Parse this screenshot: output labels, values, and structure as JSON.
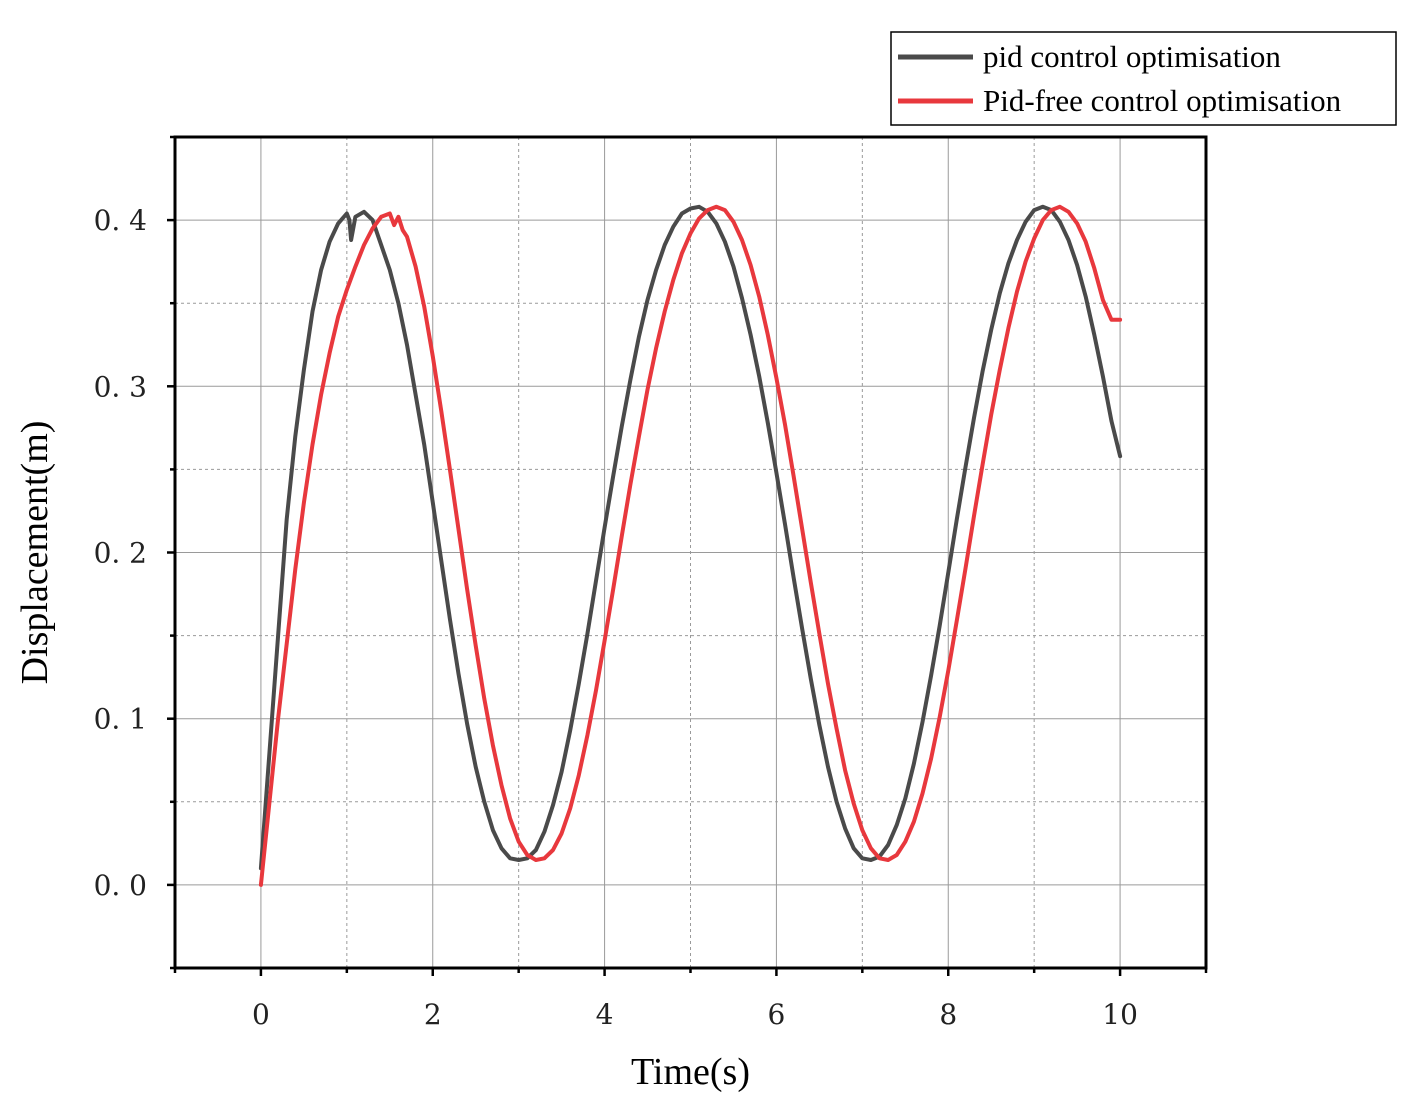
{
  "chart_data": {
    "type": "line",
    "title": "",
    "xlabel": "Time(s)",
    "ylabel": "Displacement(m)",
    "xlim": [
      -1,
      11
    ],
    "ylim": [
      -0.05,
      0.45
    ],
    "xticks": [
      0,
      2,
      4,
      6,
      8,
      10
    ],
    "xtick_labels": [
      "0",
      "2",
      "4",
      "6",
      "8",
      "10"
    ],
    "yticks": [
      0.0,
      0.1,
      0.2,
      0.3,
      0.4
    ],
    "ytick_labels": [
      "0. 0",
      "0. 1",
      "0. 2",
      "0. 3",
      "0. 4"
    ],
    "grid": true,
    "legend_position": "top-right, outside plot",
    "series": [
      {
        "name": "pid control optimisation",
        "color": "#4a4a4a",
        "x": [
          0.0,
          0.1,
          0.2,
          0.3,
          0.4,
          0.5,
          0.6,
          0.7,
          0.8,
          0.9,
          1.0,
          1.03,
          1.05,
          1.1,
          1.2,
          1.3,
          1.4,
          1.5,
          1.6,
          1.7,
          1.8,
          1.9,
          2.0,
          2.1,
          2.2,
          2.3,
          2.4,
          2.5,
          2.6,
          2.7,
          2.8,
          2.9,
          3.0,
          3.1,
          3.2,
          3.3,
          3.4,
          3.5,
          3.6,
          3.7,
          3.8,
          3.9,
          4.0,
          4.1,
          4.2,
          4.3,
          4.4,
          4.5,
          4.6,
          4.7,
          4.8,
          4.9,
          5.0,
          5.1,
          5.2,
          5.3,
          5.4,
          5.5,
          5.6,
          5.7,
          5.8,
          5.9,
          6.0,
          6.1,
          6.2,
          6.3,
          6.4,
          6.5,
          6.6,
          6.7,
          6.8,
          6.9,
          7.0,
          7.1,
          7.2,
          7.3,
          7.4,
          7.5,
          7.6,
          7.7,
          7.8,
          7.9,
          8.0,
          8.1,
          8.2,
          8.3,
          8.4,
          8.5,
          8.6,
          8.7,
          8.8,
          8.9,
          9.0,
          9.1,
          9.2,
          9.3,
          9.4,
          9.5,
          9.6,
          9.7,
          9.8,
          9.9,
          10.0
        ],
        "values": [
          0.01,
          0.08,
          0.15,
          0.22,
          0.27,
          0.31,
          0.345,
          0.37,
          0.387,
          0.398,
          0.404,
          0.4,
          0.388,
          0.402,
          0.405,
          0.4,
          0.385,
          0.37,
          0.35,
          0.325,
          0.295,
          0.265,
          0.23,
          0.195,
          0.16,
          0.127,
          0.097,
          0.071,
          0.05,
          0.033,
          0.022,
          0.016,
          0.015,
          0.016,
          0.021,
          0.032,
          0.048,
          0.068,
          0.093,
          0.121,
          0.151,
          0.183,
          0.215,
          0.246,
          0.276,
          0.304,
          0.33,
          0.352,
          0.37,
          0.385,
          0.396,
          0.404,
          0.407,
          0.408,
          0.405,
          0.398,
          0.387,
          0.372,
          0.353,
          0.331,
          0.306,
          0.278,
          0.248,
          0.217,
          0.185,
          0.154,
          0.124,
          0.096,
          0.071,
          0.05,
          0.034,
          0.022,
          0.016,
          0.015,
          0.017,
          0.024,
          0.036,
          0.052,
          0.073,
          0.098,
          0.126,
          0.156,
          0.188,
          0.22,
          0.251,
          0.281,
          0.309,
          0.334,
          0.356,
          0.374,
          0.388,
          0.399,
          0.406,
          0.408,
          0.406,
          0.399,
          0.388,
          0.373,
          0.354,
          0.331,
          0.306,
          0.279,
          0.258
        ]
      },
      {
        "name": "Pid-free control optimisation",
        "color": "#e8383d",
        "x": [
          0.0,
          0.1,
          0.2,
          0.3,
          0.4,
          0.5,
          0.6,
          0.7,
          0.8,
          0.9,
          1.0,
          1.1,
          1.2,
          1.3,
          1.4,
          1.5,
          1.55,
          1.6,
          1.65,
          1.7,
          1.8,
          1.9,
          2.0,
          2.1,
          2.2,
          2.3,
          2.4,
          2.5,
          2.6,
          2.7,
          2.8,
          2.9,
          3.0,
          3.1,
          3.2,
          3.3,
          3.4,
          3.5,
          3.6,
          3.7,
          3.8,
          3.9,
          4.0,
          4.1,
          4.2,
          4.3,
          4.4,
          4.5,
          4.6,
          4.7,
          4.8,
          4.9,
          5.0,
          5.1,
          5.2,
          5.3,
          5.4,
          5.5,
          5.6,
          5.7,
          5.8,
          5.9,
          6.0,
          6.1,
          6.2,
          6.3,
          6.4,
          6.5,
          6.6,
          6.7,
          6.8,
          6.9,
          7.0,
          7.1,
          7.2,
          7.3,
          7.4,
          7.5,
          7.6,
          7.7,
          7.8,
          7.9,
          8.0,
          8.1,
          8.2,
          8.3,
          8.4,
          8.5,
          8.6,
          8.7,
          8.8,
          8.9,
          9.0,
          9.1,
          9.2,
          9.3,
          9.4,
          9.5,
          9.6,
          9.7,
          9.8,
          9.9,
          10.0
        ],
        "values": [
          0.0,
          0.05,
          0.1,
          0.145,
          0.19,
          0.23,
          0.265,
          0.295,
          0.32,
          0.342,
          0.358,
          0.372,
          0.385,
          0.395,
          0.402,
          0.404,
          0.397,
          0.402,
          0.394,
          0.39,
          0.372,
          0.348,
          0.318,
          0.285,
          0.25,
          0.214,
          0.178,
          0.144,
          0.112,
          0.084,
          0.06,
          0.04,
          0.026,
          0.018,
          0.015,
          0.016,
          0.021,
          0.031,
          0.046,
          0.066,
          0.09,
          0.117,
          0.147,
          0.178,
          0.21,
          0.241,
          0.27,
          0.298,
          0.323,
          0.345,
          0.364,
          0.38,
          0.392,
          0.401,
          0.406,
          0.408,
          0.406,
          0.399,
          0.388,
          0.373,
          0.354,
          0.331,
          0.305,
          0.277,
          0.246,
          0.214,
          0.182,
          0.151,
          0.121,
          0.094,
          0.069,
          0.049,
          0.033,
          0.022,
          0.016,
          0.015,
          0.018,
          0.026,
          0.038,
          0.055,
          0.076,
          0.101,
          0.129,
          0.159,
          0.19,
          0.222,
          0.253,
          0.283,
          0.31,
          0.335,
          0.357,
          0.375,
          0.389,
          0.4,
          0.406,
          0.408,
          0.405,
          0.398,
          0.387,
          0.371,
          0.352,
          0.34,
          0.34
        ]
      }
    ]
  }
}
